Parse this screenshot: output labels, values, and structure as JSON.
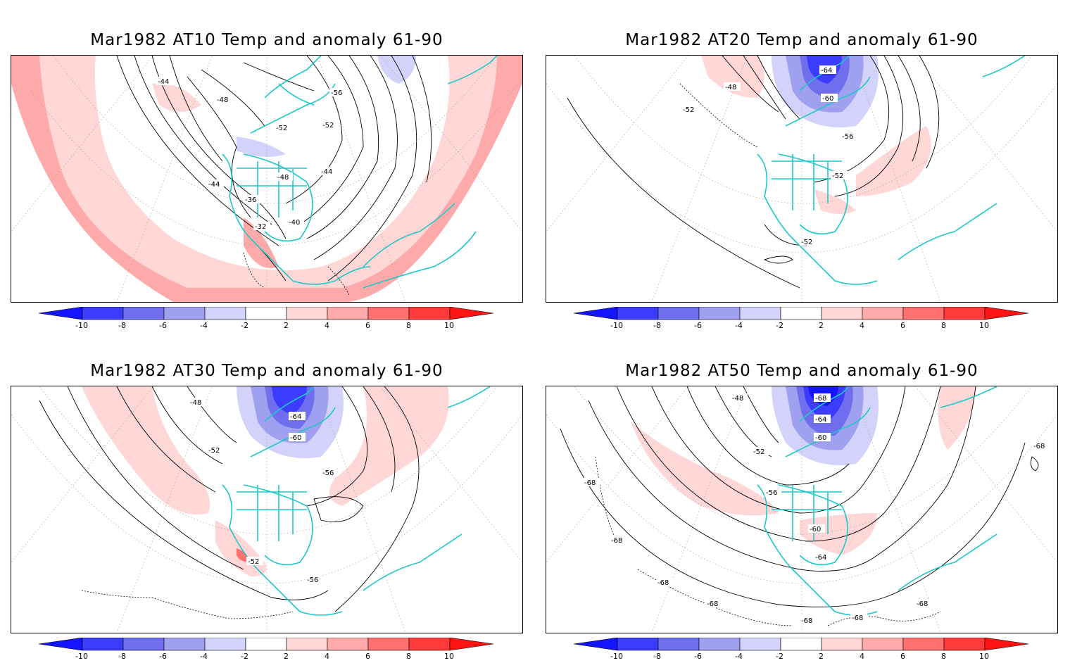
{
  "colorbar": {
    "ticks": [
      "-10",
      "-8",
      "-6",
      "-4",
      "-2",
      "2",
      "4",
      "6",
      "8",
      "10"
    ],
    "colors": [
      "#1414ff",
      "#3c3cff",
      "#6e6eef",
      "#a0a0f0",
      "#d2d2fa",
      "#ffffff",
      "#ffd7d7",
      "#ffaaaa",
      "#ff7070",
      "#ff3a3a",
      "#ff1414"
    ]
  },
  "coastline_color": "#1ec8c8",
  "contour_color": "#000000",
  "panels": [
    {
      "title": "Mar1982 AT10 Temp and anomaly 61-90",
      "labels": [
        "-44",
        "-48",
        "-52",
        "-52",
        "-56",
        "-44",
        "-44",
        "-48",
        "-36",
        "-32",
        "-40"
      ]
    },
    {
      "title": "Mar1982 AT20 Temp and anomaly 61-90",
      "labels": [
        "-64",
        "-48",
        "-60",
        "-52",
        "-56",
        "-52",
        "-52"
      ]
    },
    {
      "title": "Mar1982 AT30 Temp and anomaly 61-90",
      "labels": [
        "-48",
        "-64",
        "-60",
        "-52",
        "-56",
        "-52",
        "-56"
      ]
    },
    {
      "title": "Mar1982 AT50 Temp and anomaly 61-90",
      "labels": [
        "-68",
        "-48",
        "-64",
        "-60",
        "-52",
        "-68",
        "-68",
        "-56",
        "-60",
        "-68",
        "-64",
        "-68",
        "-68",
        "-68",
        "-68",
        "-68"
      ]
    }
  ]
}
